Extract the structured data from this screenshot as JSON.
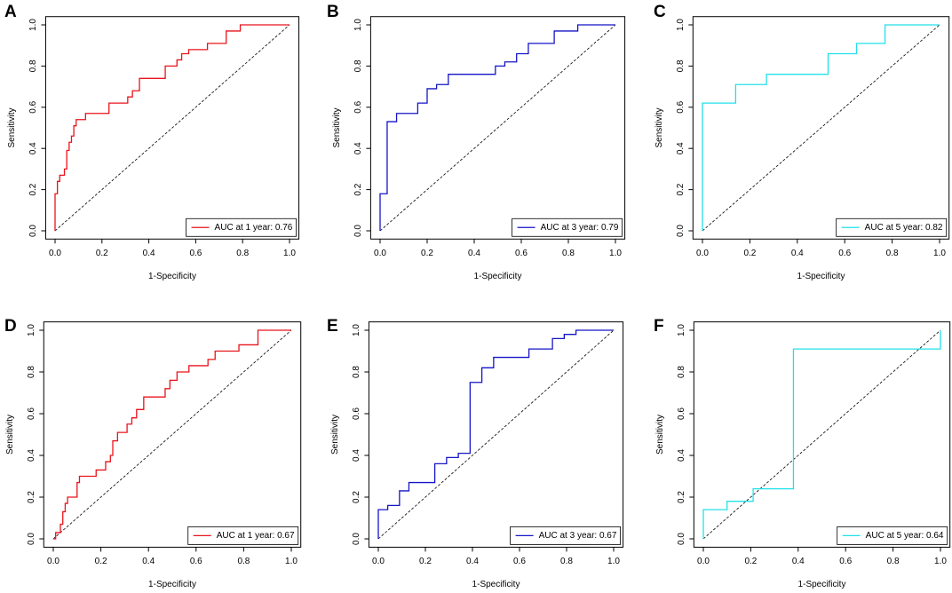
{
  "chart_data": [
    {
      "type": "line",
      "label": "A",
      "xlabel": "1-Specificity",
      "ylabel": "Sensitivity",
      "legend": "bottomright",
      "xlim": [
        0,
        1
      ],
      "ylim": [
        0,
        1
      ],
      "xticks": [
        {
          "value": 0,
          "label": "0.0"
        },
        {
          "value": 0.2,
          "label": "0.2"
        },
        {
          "value": 0.4,
          "label": "0.4"
        },
        {
          "value": 0.6,
          "label": "0.6"
        },
        {
          "value": 0.8,
          "label": "0.8"
        },
        {
          "value": 1,
          "label": "1.0"
        }
      ],
      "yticks": [
        {
          "value": 0,
          "label": "0.0"
        },
        {
          "value": 0.2,
          "label": "0.2"
        },
        {
          "value": 0.4,
          "label": "0.4"
        },
        {
          "value": 0.6,
          "label": "0.6"
        },
        {
          "value": 0.8,
          "label": "0.8"
        },
        {
          "value": 1,
          "label": "1.0"
        }
      ],
      "x": [
        0,
        0,
        0.01,
        0.01,
        0.02,
        0.02,
        0.04,
        0.04,
        0.05,
        0.05,
        0.06,
        0.06,
        0.07,
        0.07,
        0.08,
        0.08,
        0.09,
        0.09,
        0.13,
        0.13,
        0.23,
        0.23,
        0.31,
        0.31,
        0.33,
        0.33,
        0.36,
        0.36,
        0.47,
        0.47,
        0.52,
        0.52,
        0.54,
        0.54,
        0.57,
        0.57,
        0.65,
        0.65,
        0.73,
        0.73,
        0.79,
        0.79,
        1
      ],
      "series": [
        {
          "name": "AUC at 1 year: 0.76",
          "color": "#e8141c",
          "values": [
            0,
            0.18,
            0.18,
            0.24,
            0.24,
            0.27,
            0.27,
            0.3,
            0.3,
            0.39,
            0.39,
            0.43,
            0.43,
            0.46,
            0.46,
            0.51,
            0.51,
            0.54,
            0.54,
            0.57,
            0.57,
            0.62,
            0.62,
            0.65,
            0.65,
            0.68,
            0.68,
            0.74,
            0.74,
            0.8,
            0.8,
            0.83,
            0.83,
            0.86,
            0.86,
            0.88,
            0.88,
            0.91,
            0.91,
            0.97,
            0.97,
            1,
            1
          ]
        }
      ]
    },
    {
      "type": "line",
      "label": "B",
      "xlabel": "1-Specificity",
      "ylabel": "Sensitivity",
      "legend": "bottomright",
      "xlim": [
        0,
        1
      ],
      "ylim": [
        0,
        1
      ],
      "xticks": [
        {
          "value": 0,
          "label": "0.0"
        },
        {
          "value": 0.2,
          "label": "0.2"
        },
        {
          "value": 0.4,
          "label": "0.4"
        },
        {
          "value": 0.6,
          "label": "0.6"
        },
        {
          "value": 0.8,
          "label": "0.8"
        },
        {
          "value": 1,
          "label": "1.0"
        }
      ],
      "yticks": [
        {
          "value": 0,
          "label": "0.0"
        },
        {
          "value": 0.2,
          "label": "0.2"
        },
        {
          "value": 0.4,
          "label": "0.4"
        },
        {
          "value": 0.6,
          "label": "0.6"
        },
        {
          "value": 0.8,
          "label": "0.8"
        },
        {
          "value": 1,
          "label": "1.0"
        }
      ],
      "x": [
        0,
        0,
        0.03,
        0.03,
        0.07,
        0.07,
        0.16,
        0.16,
        0.2,
        0.2,
        0.24,
        0.24,
        0.29,
        0.29,
        0.49,
        0.49,
        0.53,
        0.53,
        0.58,
        0.58,
        0.63,
        0.63,
        0.74,
        0.74,
        0.84,
        0.84,
        1
      ],
      "series": [
        {
          "name": "AUC at 3 year: 0.79",
          "color": "#1515c8",
          "values": [
            0,
            0.18,
            0.18,
            0.53,
            0.53,
            0.57,
            0.57,
            0.62,
            0.62,
            0.69,
            0.69,
            0.71,
            0.71,
            0.76,
            0.76,
            0.8,
            0.8,
            0.82,
            0.82,
            0.86,
            0.86,
            0.91,
            0.91,
            0.97,
            0.97,
            1,
            1
          ]
        }
      ]
    },
    {
      "type": "line",
      "label": "C",
      "xlabel": "1-Specificity",
      "ylabel": "Sensitivity",
      "legend": "bottomright",
      "xlim": [
        0,
        1
      ],
      "ylim": [
        0,
        1
      ],
      "xticks": [
        {
          "value": 0,
          "label": "0.0"
        },
        {
          "value": 0.2,
          "label": "0.2"
        },
        {
          "value": 0.4,
          "label": "0.4"
        },
        {
          "value": 0.6,
          "label": "0.6"
        },
        {
          "value": 0.8,
          "label": "0.8"
        },
        {
          "value": 1,
          "label": "1.0"
        }
      ],
      "yticks": [
        {
          "value": 0,
          "label": "0.0"
        },
        {
          "value": 0.2,
          "label": "0.2"
        },
        {
          "value": 0.4,
          "label": "0.4"
        },
        {
          "value": 0.6,
          "label": "0.6"
        },
        {
          "value": 0.8,
          "label": "0.8"
        },
        {
          "value": 1,
          "label": "1.0"
        }
      ],
      "x": [
        0,
        0,
        0.14,
        0.14,
        0.27,
        0.27,
        0.53,
        0.53,
        0.65,
        0.65,
        0.77,
        0.77,
        1
      ],
      "series": [
        {
          "name": "AUC at 5 year: 0.82",
          "color": "#22e0ea",
          "values": [
            0,
            0.62,
            0.62,
            0.71,
            0.71,
            0.76,
            0.76,
            0.86,
            0.86,
            0.91,
            0.91,
            1,
            1
          ]
        }
      ]
    },
    {
      "type": "line",
      "label": "D",
      "xlabel": "1-Specificity",
      "ylabel": "Sensitivity",
      "legend": "bottomright",
      "xlim": [
        0,
        1
      ],
      "ylim": [
        0,
        1
      ],
      "xticks": [
        {
          "value": 0,
          "label": "0.0"
        },
        {
          "value": 0.2,
          "label": "0.2"
        },
        {
          "value": 0.4,
          "label": "0.4"
        },
        {
          "value": 0.6,
          "label": "0.6"
        },
        {
          "value": 0.8,
          "label": "0.8"
        },
        {
          "value": 1,
          "label": "1.0"
        }
      ],
      "yticks": [
        {
          "value": 0,
          "label": "0.0"
        },
        {
          "value": 0.2,
          "label": "0.2"
        },
        {
          "value": 0.4,
          "label": "0.4"
        },
        {
          "value": 0.6,
          "label": "0.6"
        },
        {
          "value": 0.8,
          "label": "0.8"
        },
        {
          "value": 1,
          "label": "1.0"
        }
      ],
      "x": [
        0,
        0.01,
        0.01,
        0.03,
        0.03,
        0.04,
        0.04,
        0.05,
        0.05,
        0.06,
        0.06,
        0.1,
        0.1,
        0.11,
        0.11,
        0.18,
        0.18,
        0.22,
        0.22,
        0.24,
        0.24,
        0.25,
        0.25,
        0.27,
        0.27,
        0.31,
        0.31,
        0.33,
        0.33,
        0.35,
        0.35,
        0.38,
        0.38,
        0.47,
        0.47,
        0.49,
        0.49,
        0.52,
        0.52,
        0.57,
        0.57,
        0.65,
        0.65,
        0.68,
        0.68,
        0.78,
        0.78,
        0.86,
        0.86,
        1
      ],
      "series": [
        {
          "name": "AUC at 1 year: 0.67",
          "color": "#e8141c",
          "values": [
            0,
            0,
            0.03,
            0.03,
            0.07,
            0.07,
            0.13,
            0.13,
            0.17,
            0.17,
            0.2,
            0.2,
            0.27,
            0.27,
            0.3,
            0.3,
            0.33,
            0.33,
            0.37,
            0.37,
            0.4,
            0.4,
            0.47,
            0.47,
            0.51,
            0.51,
            0.55,
            0.55,
            0.58,
            0.58,
            0.62,
            0.62,
            0.68,
            0.68,
            0.72,
            0.72,
            0.76,
            0.76,
            0.8,
            0.8,
            0.83,
            0.83,
            0.86,
            0.86,
            0.9,
            0.9,
            0.93,
            0.93,
            1,
            1
          ]
        }
      ]
    },
    {
      "type": "line",
      "label": "E",
      "xlabel": "1-Specificity",
      "ylabel": "Sensitivity",
      "legend": "bottomright",
      "xlim": [
        0,
        1
      ],
      "ylim": [
        0,
        1
      ],
      "xticks": [
        {
          "value": 0,
          "label": "0.0"
        },
        {
          "value": 0.2,
          "label": "0.2"
        },
        {
          "value": 0.4,
          "label": "0.4"
        },
        {
          "value": 0.6,
          "label": "0.6"
        },
        {
          "value": 0.8,
          "label": "0.8"
        },
        {
          "value": 1,
          "label": "1.0"
        }
      ],
      "yticks": [
        {
          "value": 0,
          "label": "0.0"
        },
        {
          "value": 0.2,
          "label": "0.2"
        },
        {
          "value": 0.4,
          "label": "0.4"
        },
        {
          "value": 0.6,
          "label": "0.6"
        },
        {
          "value": 0.8,
          "label": "0.8"
        },
        {
          "value": 1,
          "label": "1.0"
        }
      ],
      "x": [
        0,
        0,
        0.04,
        0.04,
        0.09,
        0.09,
        0.13,
        0.13,
        0.24,
        0.24,
        0.29,
        0.29,
        0.34,
        0.34,
        0.39,
        0.39,
        0.44,
        0.44,
        0.49,
        0.49,
        0.64,
        0.64,
        0.74,
        0.74,
        0.79,
        0.79,
        0.84,
        0.84,
        1
      ],
      "series": [
        {
          "name": "AUC at 3 year: 0.67",
          "color": "#1515c8",
          "values": [
            0,
            0.14,
            0.14,
            0.16,
            0.16,
            0.23,
            0.23,
            0.27,
            0.27,
            0.36,
            0.36,
            0.39,
            0.39,
            0.41,
            0.41,
            0.75,
            0.75,
            0.82,
            0.82,
            0.87,
            0.87,
            0.91,
            0.91,
            0.96,
            0.96,
            0.98,
            0.98,
            1,
            1
          ]
        }
      ]
    },
    {
      "type": "line",
      "label": "F",
      "xlabel": "1-Specificity",
      "ylabel": "Sensitivity",
      "legend": "bottomright",
      "xlim": [
        0,
        1
      ],
      "ylim": [
        0,
        1
      ],
      "xticks": [
        {
          "value": 0,
          "label": "0.0"
        },
        {
          "value": 0.2,
          "label": "0.2"
        },
        {
          "value": 0.4,
          "label": "0.4"
        },
        {
          "value": 0.6,
          "label": "0.6"
        },
        {
          "value": 0.8,
          "label": "0.8"
        },
        {
          "value": 1,
          "label": "1.0"
        }
      ],
      "yticks": [
        {
          "value": 0,
          "label": "0.0"
        },
        {
          "value": 0.2,
          "label": "0.2"
        },
        {
          "value": 0.4,
          "label": "0.4"
        },
        {
          "value": 0.6,
          "label": "0.6"
        },
        {
          "value": 0.8,
          "label": "0.8"
        },
        {
          "value": 1,
          "label": "1.0"
        }
      ],
      "x": [
        0,
        0,
        0.1,
        0.1,
        0.21,
        0.21,
        0.38,
        0.38,
        1,
        1
      ],
      "series": [
        {
          "name": "AUC at 5 year: 0.64",
          "color": "#22e0ea",
          "values": [
            0,
            0.14,
            0.14,
            0.18,
            0.18,
            0.24,
            0.24,
            0.91,
            0.91,
            1
          ]
        }
      ]
    }
  ]
}
